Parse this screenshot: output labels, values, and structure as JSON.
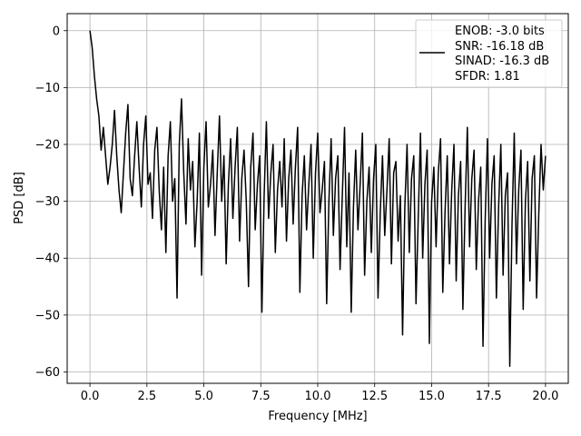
{
  "chart_data": {
    "type": "line",
    "title": "",
    "xlabel": "Frequency [MHz]",
    "ylabel": "PSD [dB]",
    "xlim": [
      -1.0,
      21.0
    ],
    "ylim": [
      -62.0,
      3.0
    ],
    "x_ticks": [
      0.0,
      2.5,
      5.0,
      7.5,
      10.0,
      12.5,
      15.0,
      17.5,
      20.0
    ],
    "x_tick_labels": [
      "0.0",
      "2.5",
      "5.0",
      "7.5",
      "10.0",
      "12.5",
      "15.0",
      "17.5",
      "20.0"
    ],
    "y_ticks": [
      0,
      -10,
      -20,
      -30,
      -40,
      -50,
      -60
    ],
    "y_tick_labels": [
      "0",
      "−10",
      "−20",
      "−30",
      "−40",
      "−50",
      "−60"
    ],
    "grid": true,
    "legend_position": "top-right",
    "legend_lines": [
      "ENOB: -3.0 bits",
      "SNR: -16.18 dB",
      "SINAD: -16.3 dB",
      "SFDR: 1.81"
    ],
    "line_color": "#000000",
    "series": [
      {
        "x_start": 0.0,
        "x_end": 20.0,
        "values": [
          0.0,
          -3.0,
          -8.0,
          -12.0,
          -15.0,
          -21.0,
          -17.0,
          -22.0,
          -27.0,
          -24.0,
          -20.0,
          -14.0,
          -22.0,
          -28.0,
          -32.0,
          -25.0,
          -18.0,
          -13.0,
          -26.0,
          -29.0,
          -22.0,
          -16.0,
          -24.0,
          -31.0,
          -20.0,
          -15.0,
          -27.0,
          -25.0,
          -33.0,
          -21.0,
          -17.0,
          -28.0,
          -35.0,
          -24.0,
          -39.0,
          -22.0,
          -16.0,
          -30.0,
          -26.0,
          -47.0,
          -20.0,
          -12.0,
          -25.0,
          -34.0,
          -19.0,
          -28.0,
          -23.0,
          -38.0,
          -30.0,
          -18.0,
          -43.0,
          -24.0,
          -16.0,
          -31.0,
          -27.0,
          -21.0,
          -36.0,
          -25.0,
          -15.0,
          -30.0,
          -22.0,
          -41.0,
          -27.0,
          -19.0,
          -33.0,
          -24.0,
          -17.0,
          -37.0,
          -26.0,
          -21.0,
          -30.0,
          -45.0,
          -24.0,
          -18.0,
          -35.0,
          -27.0,
          -22.0,
          -49.5,
          -29.0,
          -16.0,
          -33.0,
          -25.0,
          -20.0,
          -39.0,
          -28.0,
          -23.0,
          -31.0,
          -19.0,
          -37.0,
          -26.0,
          -21.0,
          -34.0,
          -24.0,
          -17.0,
          -46.0,
          -29.0,
          -22.0,
          -35.0,
          -27.0,
          -20.0,
          -40.0,
          -25.0,
          -18.0,
          -32.0,
          -28.0,
          -23.0,
          -48.0,
          -30.0,
          -19.0,
          -36.0,
          -26.0,
          -22.0,
          -42.0,
          -29.0,
          -17.0,
          -38.0,
          -25.0,
          -49.5,
          -31.0,
          -21.0,
          -35.0,
          -27.0,
          -18.0,
          -43.0,
          -30.0,
          -24.0,
          -39.0,
          -26.0,
          -20.0,
          -47.0,
          -32.0,
          -22.0,
          -36.0,
          -28.0,
          -19.0,
          -41.0,
          -25.0,
          -23.0,
          -37.0,
          -29.0,
          -53.5,
          -31.0,
          -20.0,
          -39.0,
          -26.0,
          -22.0,
          -48.0,
          -33.0,
          -18.0,
          -40.0,
          -27.0,
          -21.0,
          -55.0,
          -30.0,
          -24.0,
          -38.0,
          -25.0,
          -19.0,
          -46.0,
          -32.0,
          -22.0,
          -41.0,
          -28.0,
          -20.0,
          -44.0,
          -29.0,
          -23.0,
          -49.0,
          -31.0,
          -17.0,
          -38.0,
          -26.0,
          -21.0,
          -42.0,
          -30.0,
          -24.0,
          -55.5,
          -33.0,
          -19.0,
          -40.0,
          -27.0,
          -22.0,
          -47.0,
          -31.0,
          -20.0,
          -43.0,
          -29.0,
          -25.0,
          -59.0,
          -34.0,
          -18.0,
          -41.0,
          -28.0,
          -21.0,
          -49.0,
          -30.0,
          -23.0,
          -44.0,
          -26.0,
          -22.0,
          -47.0,
          -32.0,
          -20.0,
          -28.0,
          -22.0
        ]
      }
    ]
  }
}
